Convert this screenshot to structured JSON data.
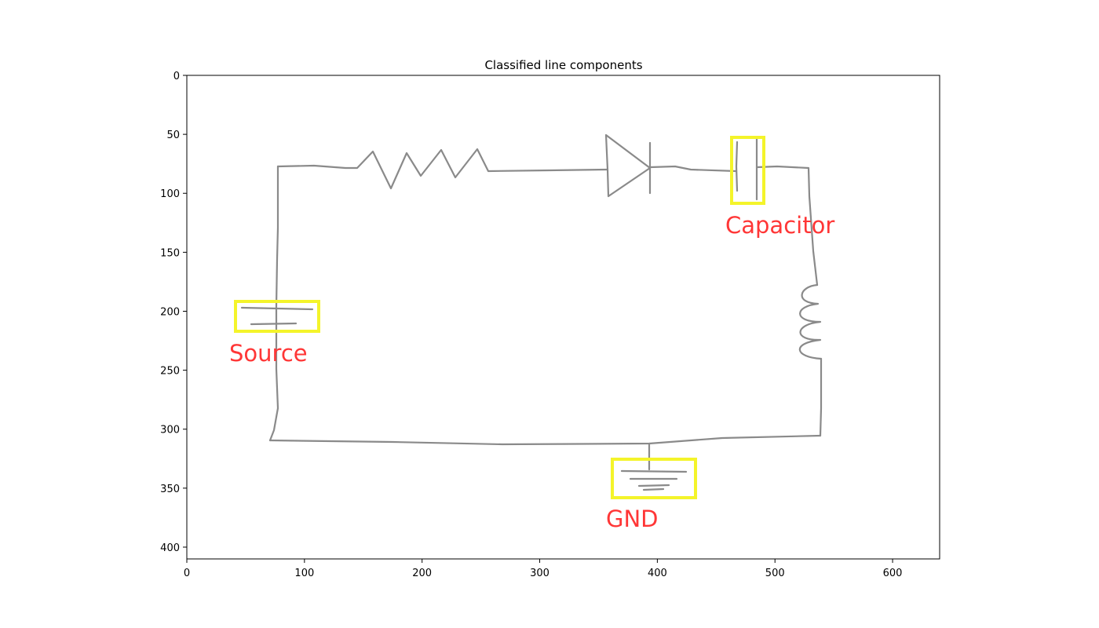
{
  "figure": {
    "title": "Classified line components"
  },
  "axes": {
    "x_ticks": [
      0,
      100,
      200,
      300,
      400,
      500,
      600
    ],
    "y_ticks": [
      0,
      50,
      100,
      150,
      200,
      250,
      300,
      350,
      400
    ],
    "xlim": [
      0,
      640
    ],
    "ylim": [
      410,
      0
    ]
  },
  "components": [
    {
      "id": "source",
      "label": "Source"
    },
    {
      "id": "capacitor",
      "label": "Capacitor"
    },
    {
      "id": "gnd",
      "label": "GND"
    }
  ],
  "colors": {
    "wire": "#8a8a8a",
    "box": "#f4f42a",
    "label": "#ff3636"
  }
}
